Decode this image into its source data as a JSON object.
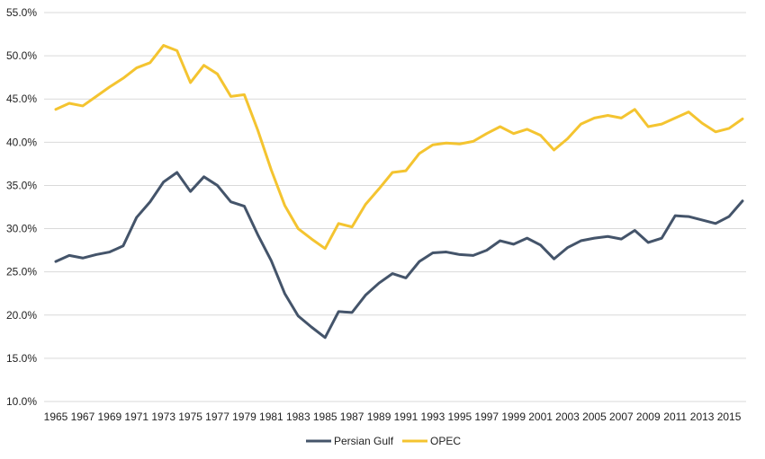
{
  "chart_data": {
    "type": "line",
    "title": "",
    "xlabel": "",
    "ylabel": "",
    "ylim": [
      10,
      55
    ],
    "y_ticks": [
      "10.0%",
      "15.0%",
      "20.0%",
      "25.0%",
      "30.0%",
      "35.0%",
      "40.0%",
      "45.0%",
      "50.0%",
      "55.0%"
    ],
    "y_tick_values": [
      10,
      15,
      20,
      25,
      30,
      35,
      40,
      45,
      50,
      55
    ],
    "x": [
      1965,
      1966,
      1967,
      1968,
      1969,
      1970,
      1971,
      1972,
      1973,
      1974,
      1975,
      1976,
      1977,
      1978,
      1979,
      1980,
      1981,
      1982,
      1983,
      1984,
      1985,
      1986,
      1987,
      1988,
      1989,
      1990,
      1991,
      1992,
      1993,
      1994,
      1995,
      1996,
      1997,
      1998,
      1999,
      2000,
      2001,
      2002,
      2003,
      2004,
      2005,
      2006,
      2007,
      2008,
      2009,
      2010,
      2011,
      2012,
      2013,
      2014,
      2015,
      2016
    ],
    "x_tick_labels": [
      "1965",
      "1967",
      "1969",
      "1971",
      "1973",
      "1975",
      "1977",
      "1979",
      "1981",
      "1983",
      "1985",
      "1987",
      "1989",
      "1991",
      "1993",
      "1995",
      "1997",
      "1999",
      "2001",
      "2003",
      "2005",
      "2007",
      "2009",
      "2011",
      "2013",
      "2015"
    ],
    "grid": true,
    "legend_position": "bottom",
    "series": [
      {
        "name": "Persian Gulf",
        "color": "#44546a",
        "values": [
          26.2,
          26.9,
          26.6,
          27.0,
          27.3,
          28.0,
          31.3,
          33.1,
          35.4,
          36.5,
          34.3,
          36.0,
          35.0,
          33.1,
          32.6,
          29.3,
          26.3,
          22.5,
          19.9,
          18.6,
          17.4,
          20.4,
          20.3,
          22.3,
          23.7,
          24.8,
          24.3,
          26.2,
          27.2,
          27.3,
          27.0,
          26.9,
          27.5,
          28.6,
          28.2,
          28.9,
          28.1,
          26.5,
          27.8,
          28.6,
          28.9,
          29.1,
          28.8,
          29.8,
          28.4,
          28.9,
          31.5,
          31.4,
          31.0,
          30.6,
          31.4,
          33.2
        ]
      },
      {
        "name": "OPEC",
        "color": "#f4c430",
        "values": [
          43.8,
          44.5,
          44.2,
          45.3,
          46.4,
          47.4,
          48.6,
          49.2,
          51.2,
          50.6,
          46.9,
          48.9,
          47.9,
          45.3,
          45.5,
          41.4,
          36.8,
          32.7,
          30.0,
          28.8,
          27.7,
          30.6,
          30.2,
          32.8,
          34.6,
          36.5,
          36.7,
          38.7,
          39.7,
          39.9,
          39.8,
          40.1,
          41.0,
          41.8,
          41.0,
          41.5,
          40.8,
          39.1,
          40.4,
          42.1,
          42.8,
          43.1,
          42.8,
          43.8,
          41.8,
          42.1,
          42.8,
          43.5,
          42.2,
          41.2,
          41.6,
          42.7
        ]
      }
    ]
  }
}
